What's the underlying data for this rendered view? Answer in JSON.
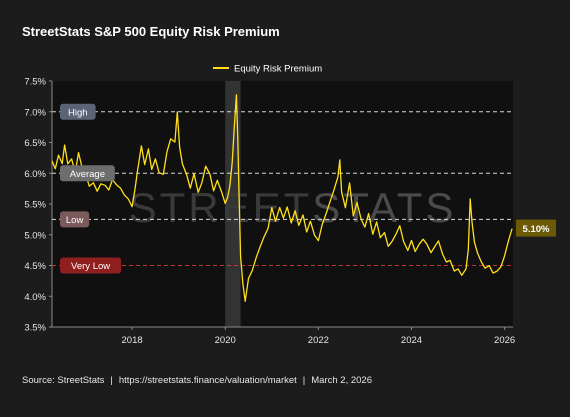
{
  "title": "StreetStats S&P 500 Equity Risk Premium",
  "watermark": {
    "left": "STREET",
    "right": "STATS"
  },
  "footer": {
    "source": "Source:  StreetStats",
    "url": "https://streetstats.finance/valuation/market",
    "date": "March 2, 2026"
  },
  "colors": {
    "background": "#1c1c1c",
    "plot_background": "#101010",
    "line": "#ffe01a",
    "high_band": "#5a6476",
    "average_band": "#6d6d6d",
    "low_band": "#7a5a5a",
    "very_low_band": "#8f1f1f",
    "current_badge": "#6b5a06",
    "very_low_line": "#c0392b"
  },
  "chart_data": {
    "type": "line",
    "title": "StreetStats S&P 500 Equity Risk Premium",
    "xlim": [
      2016.28,
      2026.18
    ],
    "ylim": [
      3.5,
      7.5
    ],
    "y_ticks": [
      3.5,
      4.0,
      4.5,
      5.0,
      5.5,
      6.0,
      6.5,
      7.0,
      7.5
    ],
    "y_tick_labels": [
      "3.5%",
      "4.0%",
      "4.5%",
      "5.0%",
      "5.5%",
      "6.0%",
      "6.5%",
      "7.0%",
      "7.5%"
    ],
    "x_ticks": [
      2018,
      2020,
      2022,
      2024,
      2026
    ],
    "x_tick_labels": [
      "2018",
      "2020",
      "2022",
      "2024",
      "2026"
    ],
    "legend": {
      "position": "top-center",
      "entries": [
        "Equity Risk Premium"
      ]
    },
    "grid": false,
    "thresholds": [
      {
        "label": "High",
        "value": 7.0,
        "style": "dashed"
      },
      {
        "label": "Average",
        "value": 6.0,
        "style": "dashed"
      },
      {
        "label": "Low",
        "value": 5.25,
        "style": "dashed"
      },
      {
        "label": "Very Low",
        "value": 4.5,
        "style": "dashed"
      }
    ],
    "shaded_periods": [
      {
        "start": 2020.0,
        "end": 2020.33
      }
    ],
    "current_value_label": "5.10%",
    "series": [
      {
        "name": "Equity Risk Premium",
        "points": [
          [
            2016.28,
            6.2
          ],
          [
            2016.35,
            6.05
          ],
          [
            2016.42,
            6.25
          ],
          [
            2016.5,
            6.1
          ],
          [
            2016.55,
            6.4
          ],
          [
            2016.62,
            6.1
          ],
          [
            2016.7,
            6.2
          ],
          [
            2016.78,
            6.0
          ],
          [
            2016.85,
            6.35
          ],
          [
            2016.92,
            6.15
          ],
          [
            2017.0,
            6.05
          ],
          [
            2017.08,
            5.85
          ],
          [
            2017.17,
            5.9
          ],
          [
            2017.25,
            5.75
          ],
          [
            2017.33,
            5.85
          ],
          [
            2017.42,
            5.8
          ],
          [
            2017.5,
            5.7
          ],
          [
            2017.58,
            5.85
          ],
          [
            2017.67,
            5.75
          ],
          [
            2017.75,
            5.7
          ],
          [
            2017.83,
            5.6
          ],
          [
            2017.92,
            5.55
          ],
          [
            2018.0,
            5.45
          ],
          [
            2018.06,
            5.75
          ],
          [
            2018.12,
            6.1
          ],
          [
            2018.2,
            6.5
          ],
          [
            2018.27,
            6.2
          ],
          [
            2018.35,
            6.45
          ],
          [
            2018.42,
            6.1
          ],
          [
            2018.5,
            6.25
          ],
          [
            2018.58,
            6.0
          ],
          [
            2018.67,
            5.95
          ],
          [
            2018.75,
            6.3
          ],
          [
            2018.83,
            6.5
          ],
          [
            2018.92,
            6.45
          ],
          [
            2018.97,
            6.95
          ],
          [
            2019.02,
            6.4
          ],
          [
            2019.08,
            6.15
          ],
          [
            2019.17,
            6.0
          ],
          [
            2019.25,
            5.8
          ],
          [
            2019.33,
            6.05
          ],
          [
            2019.42,
            5.75
          ],
          [
            2019.5,
            5.9
          ],
          [
            2019.58,
            6.15
          ],
          [
            2019.67,
            6.0
          ],
          [
            2019.75,
            5.7
          ],
          [
            2019.83,
            5.85
          ],
          [
            2019.92,
            5.65
          ],
          [
            2020.0,
            5.45
          ],
          [
            2020.05,
            5.55
          ],
          [
            2020.1,
            5.75
          ],
          [
            2020.15,
            6.15
          ],
          [
            2020.2,
            6.8
          ],
          [
            2020.24,
            7.3
          ],
          [
            2020.27,
            6.6
          ],
          [
            2020.3,
            5.6
          ],
          [
            2020.33,
            4.7
          ],
          [
            2020.38,
            4.25
          ],
          [
            2020.43,
            3.95
          ],
          [
            2020.5,
            4.3
          ],
          [
            2020.58,
            4.4
          ],
          [
            2020.67,
            4.6
          ],
          [
            2020.75,
            4.75
          ],
          [
            2020.83,
            4.9
          ],
          [
            2020.92,
            5.05
          ],
          [
            2021.0,
            5.4
          ],
          [
            2021.08,
            5.2
          ],
          [
            2021.17,
            5.45
          ],
          [
            2021.25,
            5.3
          ],
          [
            2021.33,
            5.5
          ],
          [
            2021.42,
            5.25
          ],
          [
            2021.5,
            5.45
          ],
          [
            2021.58,
            5.2
          ],
          [
            2021.67,
            5.35
          ],
          [
            2021.75,
            5.05
          ],
          [
            2021.83,
            5.2
          ],
          [
            2021.92,
            4.95
          ],
          [
            2022.0,
            4.85
          ],
          [
            2022.08,
            5.1
          ],
          [
            2022.17,
            5.3
          ],
          [
            2022.25,
            5.5
          ],
          [
            2022.33,
            5.7
          ],
          [
            2022.42,
            5.95
          ],
          [
            2022.46,
            6.25
          ],
          [
            2022.5,
            5.75
          ],
          [
            2022.58,
            5.5
          ],
          [
            2022.67,
            5.9
          ],
          [
            2022.75,
            5.35
          ],
          [
            2022.83,
            5.55
          ],
          [
            2022.92,
            5.25
          ],
          [
            2023.0,
            5.1
          ],
          [
            2023.08,
            5.3
          ],
          [
            2023.17,
            4.95
          ],
          [
            2023.25,
            5.15
          ],
          [
            2023.33,
            4.9
          ],
          [
            2023.42,
            5.0
          ],
          [
            2023.5,
            4.8
          ],
          [
            2023.58,
            4.9
          ],
          [
            2023.67,
            5.05
          ],
          [
            2023.75,
            5.2
          ],
          [
            2023.83,
            4.95
          ],
          [
            2023.92,
            4.8
          ],
          [
            2024.0,
            4.95
          ],
          [
            2024.08,
            4.75
          ],
          [
            2024.17,
            4.85
          ],
          [
            2024.25,
            4.9
          ],
          [
            2024.33,
            4.8
          ],
          [
            2024.42,
            4.65
          ],
          [
            2024.5,
            4.75
          ],
          [
            2024.58,
            4.85
          ],
          [
            2024.67,
            4.65
          ],
          [
            2024.75,
            4.55
          ],
          [
            2024.83,
            4.6
          ],
          [
            2024.92,
            4.45
          ],
          [
            2025.0,
            4.5
          ],
          [
            2025.08,
            4.4
          ],
          [
            2025.17,
            4.5
          ],
          [
            2025.22,
            4.8
          ],
          [
            2025.26,
            5.6
          ],
          [
            2025.3,
            5.2
          ],
          [
            2025.35,
            4.85
          ],
          [
            2025.42,
            4.65
          ],
          [
            2025.5,
            4.5
          ],
          [
            2025.58,
            4.4
          ],
          [
            2025.67,
            4.45
          ],
          [
            2025.75,
            4.35
          ],
          [
            2025.83,
            4.4
          ],
          [
            2025.92,
            4.5
          ],
          [
            2026.0,
            4.7
          ],
          [
            2026.08,
            4.95
          ],
          [
            2026.16,
            5.1
          ]
        ]
      }
    ]
  }
}
